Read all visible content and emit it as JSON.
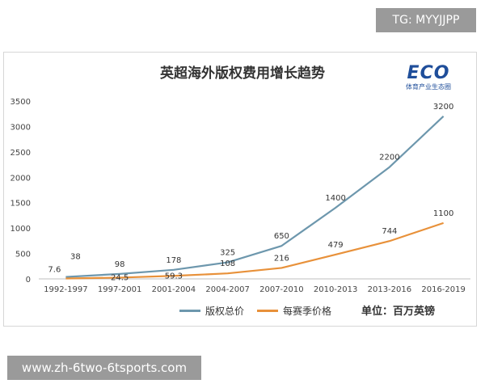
{
  "watermark": "TG: MYYJJPP",
  "footer_watermark": "www.zh-6two-6tsports.com",
  "logo": {
    "main": "ECO",
    "sub": "体育产业生态圈"
  },
  "chart_data": {
    "type": "line",
    "title": "英超海外版权费用增长趋势",
    "categories": [
      "1992-1997",
      "1997-2001",
      "2001-2004",
      "2004-2007",
      "2007-2010",
      "2010-2013",
      "2013-2016",
      "2016-2019"
    ],
    "series": [
      {
        "name": "版权总价",
        "color": "#6d97ad",
        "values": [
          38,
          98,
          178,
          325,
          650,
          1400,
          2200,
          3200
        ],
        "labels": [
          "38",
          "98",
          "178",
          "325",
          "650",
          "1400",
          "2200",
          "3200"
        ]
      },
      {
        "name": "每赛季价格",
        "color": "#e8913a",
        "values": [
          7.6,
          24.5,
          59.3,
          108,
          216,
          479,
          744,
          1100
        ],
        "labels": [
          "7.6",
          "24.5",
          "59.3",
          "108",
          "216",
          "479",
          "744",
          "1100"
        ]
      }
    ],
    "ylim": [
      0,
      3500
    ],
    "yticks": [
      0,
      500,
      1000,
      1500,
      2000,
      2500,
      3000,
      3500
    ],
    "grid": false,
    "legend_position": "bottom",
    "unit_note": "单位：百万英镑"
  }
}
